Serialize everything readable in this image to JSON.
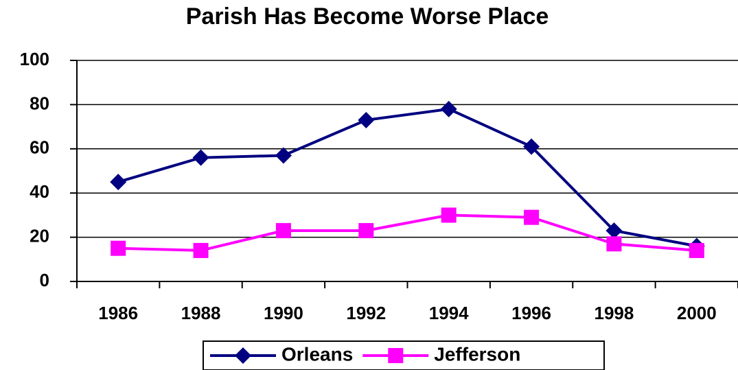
{
  "chart_data": {
    "type": "line",
    "title": "Parish Has Become Worse Place",
    "categories": [
      "1986",
      "1988",
      "1990",
      "1992",
      "1994",
      "1996",
      "1998",
      "2000"
    ],
    "series": [
      {
        "name": "Orleans",
        "color": "#000080",
        "marker": "diamond",
        "values": [
          45,
          56,
          57,
          73,
          78,
          61,
          23,
          16
        ]
      },
      {
        "name": "Jefferson",
        "color": "#ff00ff",
        "marker": "square",
        "values": [
          15,
          14,
          23,
          23,
          30,
          29,
          17,
          14
        ]
      }
    ],
    "ylim": [
      0,
      100
    ],
    "yticks": [
      0,
      20,
      40,
      60,
      80,
      100
    ],
    "grid": true,
    "legend": "bottom"
  }
}
